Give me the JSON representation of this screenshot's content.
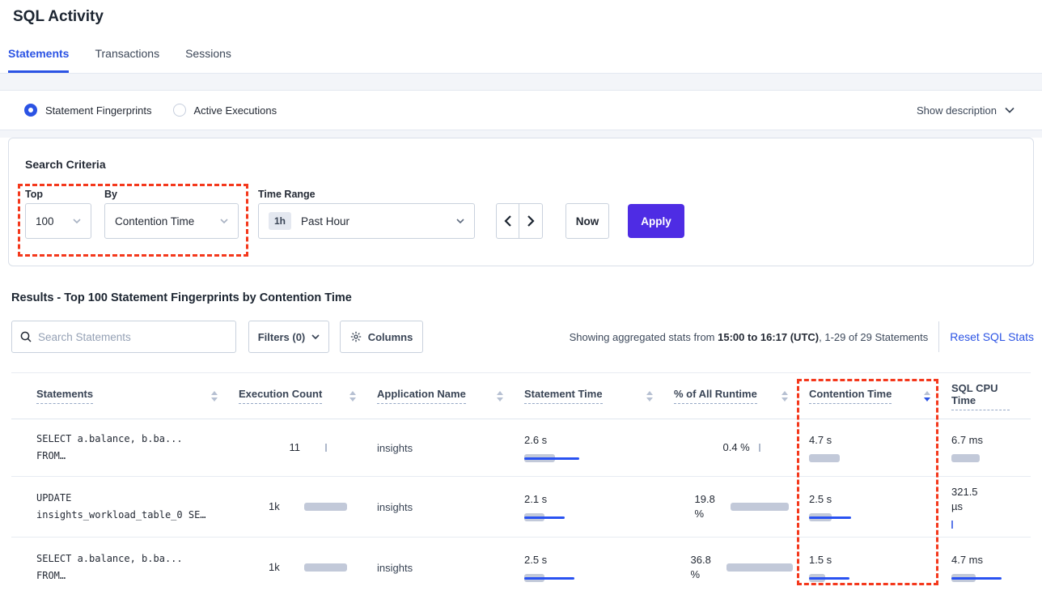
{
  "page_title": "SQL Activity",
  "tabs": [
    {
      "label": "Statements"
    },
    {
      "label": "Transactions"
    },
    {
      "label": "Sessions"
    }
  ],
  "view_toggle": {
    "options": [
      {
        "label": "Statement Fingerprints",
        "selected": true
      },
      {
        "label": "Active Executions",
        "selected": false
      }
    ],
    "show_description": "Show description"
  },
  "search_criteria": {
    "heading": "Search Criteria",
    "top": {
      "label": "Top",
      "value": "100"
    },
    "by": {
      "label": "By",
      "value": "Contention Time"
    },
    "time_range": {
      "label": "Time Range",
      "badge": "1h",
      "value": "Past Hour"
    },
    "now_button": "Now",
    "apply_button": "Apply"
  },
  "results": {
    "heading": "Results - Top 100 Statement Fingerprints by Contention Time"
  },
  "toolbar": {
    "search_placeholder": "Search Statements",
    "filters_button": "Filters (0)",
    "columns_button": "Columns",
    "stats_prefix": "Showing aggregated stats from ",
    "stats_bold": "15:00 to 16:17 (UTC)",
    "stats_suffix": ", 1-29 of 29 Statements",
    "reset_link": "Reset SQL Stats"
  },
  "table": {
    "headers": [
      "Statements",
      "Execution Count",
      "Application Name",
      "Statement Time",
      "% of All Runtime",
      "Contention Time",
      "SQL CPU Time"
    ],
    "sort": {
      "column": "Contention Time",
      "direction": "desc"
    },
    "rows": [
      {
        "statement": {
          "line1": "SELECT a.balance, b.ba...",
          "line2": "FROM…"
        },
        "execution_count": {
          "line1": "11",
          "tick": "gray"
        },
        "application": "insights",
        "statement_time": {
          "line1": "2.6 s",
          "gray": 38,
          "blue": 68
        },
        "runtime_pct": {
          "line1": "0.4 %",
          "tick": "gray"
        },
        "contention_time": {
          "line1": "4.7 s",
          "gray": 38
        },
        "cpu_time": {
          "line1": "6.7 ms",
          "gray": 35
        }
      },
      {
        "statement": {
          "line1": "UPDATE",
          "line2": "insights_workload_table_0 SE…"
        },
        "execution_count": {
          "line1": "1k",
          "gray": 53
        },
        "application": "insights",
        "statement_time": {
          "line1": "2.1 s",
          "gray": 25,
          "blue": 50
        },
        "runtime_pct": {
          "line1": "19.8",
          "line2": "%",
          "gray": 72
        },
        "contention_time": {
          "line1": "2.5 s",
          "gray": 28,
          "blue": 52
        },
        "cpu_time": {
          "line1": "321.5",
          "line2": "µs",
          "tick": "blue"
        }
      },
      {
        "statement": {
          "line1": "SELECT a.balance, b.ba...",
          "line2": "FROM…"
        },
        "execution_count": {
          "line1": "1k",
          "gray": 53
        },
        "application": "insights",
        "statement_time": {
          "line1": "2.5 s",
          "gray": 25,
          "blue": 62
        },
        "runtime_pct": {
          "line1": "36.8",
          "line2": "%",
          "gray": 82
        },
        "contention_time": {
          "line1": "1.5 s",
          "gray": 20,
          "blue": 50
        },
        "cpu_time": {
          "line1": "4.7 ms",
          "gray": 30,
          "blue": 62
        }
      }
    ]
  },
  "colors": {
    "accent_blue": "#2B53E4",
    "bar_blue": "#2952F1",
    "bar_gray": "#C2C9D9",
    "apply_purple": "#4E2CE4",
    "annotation_red": "#F4381C"
  },
  "annotations": {
    "boxes": [
      "top-by-criteria",
      "contention-time-column"
    ]
  }
}
